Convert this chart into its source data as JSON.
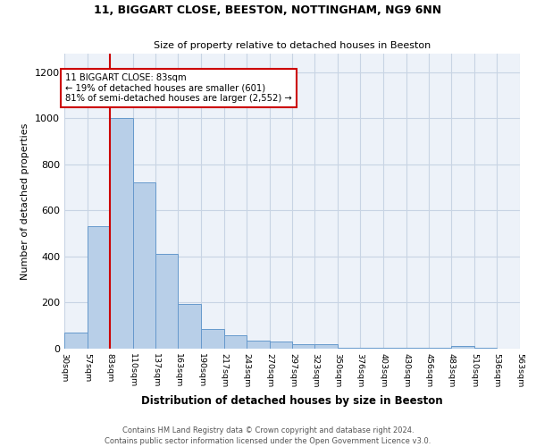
{
  "title1": "11, BIGGART CLOSE, BEESTON, NOTTINGHAM, NG9 6NN",
  "title2": "Size of property relative to detached houses in Beeston",
  "xlabel": "Distribution of detached houses by size in Beeston",
  "ylabel": "Number of detached properties",
  "footer1": "Contains HM Land Registry data © Crown copyright and database right 2024.",
  "footer2": "Contains public sector information licensed under the Open Government Licence v3.0.",
  "annotation_line1": "11 BIGGART CLOSE: 83sqm",
  "annotation_line2": "← 19% of detached houses are smaller (601)",
  "annotation_line3": "81% of semi-detached houses are larger (2,552) →",
  "marker_value": 83,
  "bin_edges": [
    30,
    57,
    83,
    110,
    137,
    163,
    190,
    217,
    243,
    270,
    297,
    323,
    350,
    376,
    403,
    430,
    456,
    483,
    510,
    536,
    563
  ],
  "bin_heights": [
    70,
    530,
    1000,
    720,
    410,
    195,
    85,
    60,
    35,
    30,
    20,
    18,
    5,
    5,
    5,
    5,
    5,
    10,
    2,
    0
  ],
  "bar_color": "#b8cfe8",
  "bar_edge_color": "#6699cc",
  "marker_color": "#cc0000",
  "grid_color": "#c8d4e4",
  "bg_color": "#edf2f9"
}
